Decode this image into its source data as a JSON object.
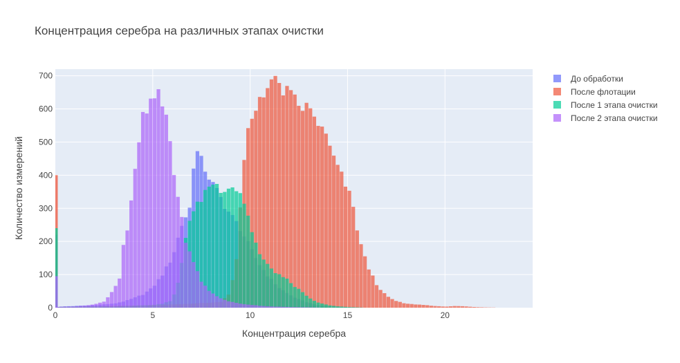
{
  "chart_data": {
    "type": "histogram",
    "title": "Концентрация серебра на различных этапах очистки",
    "xlabel": "Концентрация серебра",
    "ylabel": "Количество измерений",
    "xlim": [
      0,
      24.5
    ],
    "ylim": [
      0,
      720
    ],
    "x_ticks": [
      0,
      5,
      10,
      15,
      20
    ],
    "y_ticks": [
      0,
      100,
      200,
      300,
      400,
      500,
      600,
      700
    ],
    "grid": true,
    "barmode": "overlay",
    "legend_position": "right",
    "bin_width": 0.2,
    "series": [
      {
        "name": "До обработки",
        "color": "#636efa",
        "zero_spike": 220,
        "points": [
          [
            0,
            2
          ],
          [
            0.5,
            4
          ],
          [
            1,
            5
          ],
          [
            2,
            8
          ],
          [
            3,
            12
          ],
          [
            3.6,
            20
          ],
          [
            4,
            28
          ],
          [
            4.5,
            40
          ],
          [
            5,
            60
          ],
          [
            5.5,
            100
          ],
          [
            6,
            150
          ],
          [
            6.5,
            250
          ],
          [
            6.9,
            300
          ],
          [
            7,
            390
          ],
          [
            7.2,
            480
          ],
          [
            7.5,
            440
          ],
          [
            7.8,
            410
          ],
          [
            8,
            380
          ],
          [
            8.5,
            330
          ],
          [
            9,
            280
          ],
          [
            9.5,
            240
          ],
          [
            10,
            180
          ],
          [
            10.5,
            130
          ],
          [
            11,
            90
          ],
          [
            11.5,
            60
          ],
          [
            12,
            40
          ],
          [
            12.5,
            25
          ],
          [
            13,
            15
          ],
          [
            13.5,
            8
          ],
          [
            14,
            4
          ],
          [
            15,
            2
          ],
          [
            16,
            0
          ]
        ]
      },
      {
        "name": "После флотации",
        "color": "#ef553b",
        "zero_spike": 400,
        "points": [
          [
            0,
            2
          ],
          [
            1,
            3
          ],
          [
            2,
            4
          ],
          [
            3,
            5
          ],
          [
            4,
            6
          ],
          [
            5,
            8
          ],
          [
            6,
            10
          ],
          [
            7,
            12
          ],
          [
            7.5,
            14
          ],
          [
            8,
            15
          ],
          [
            8.5,
            18
          ],
          [
            9,
            45
          ],
          [
            9.3,
            150
          ],
          [
            9.5,
            290
          ],
          [
            9.7,
            440
          ],
          [
            9.9,
            530
          ],
          [
            10.2,
            580
          ],
          [
            10.5,
            640
          ],
          [
            10.8,
            665
          ],
          [
            11.1,
            680
          ],
          [
            11.5,
            670
          ],
          [
            12,
            640
          ],
          [
            12.5,
            610
          ],
          [
            13,
            600
          ],
          [
            13.5,
            560
          ],
          [
            14,
            500
          ],
          [
            14.5,
            420
          ],
          [
            15,
            360
          ],
          [
            15.3,
            300
          ],
          [
            15.6,
            210
          ],
          [
            16,
            130
          ],
          [
            16.5,
            70
          ],
          [
            17,
            35
          ],
          [
            17.5,
            20
          ],
          [
            18,
            12
          ],
          [
            18.5,
            10
          ],
          [
            19,
            8
          ],
          [
            19.5,
            5
          ],
          [
            20,
            3
          ],
          [
            20.5,
            5
          ],
          [
            21,
            4
          ],
          [
            21.5,
            2
          ],
          [
            22,
            1
          ],
          [
            23,
            0
          ]
        ]
      },
      {
        "name": "После 1 этапа очистки",
        "color": "#00cc96",
        "zero_spike": 240,
        "points": [
          [
            0,
            2
          ],
          [
            1,
            3
          ],
          [
            2,
            4
          ],
          [
            3,
            4
          ],
          [
            4,
            6
          ],
          [
            5,
            8
          ],
          [
            5.5,
            12
          ],
          [
            6,
            22
          ],
          [
            6.4,
            90
          ],
          [
            6.6,
            180
          ],
          [
            6.8,
            255
          ],
          [
            7,
            275
          ],
          [
            7.5,
            330
          ],
          [
            8,
            380
          ],
          [
            8.5,
            360
          ],
          [
            9,
            370
          ],
          [
            9.5,
            350
          ],
          [
            9.8,
            300
          ],
          [
            10,
            250
          ],
          [
            10.5,
            160
          ],
          [
            11,
            120
          ],
          [
            11.5,
            100
          ],
          [
            12,
            80
          ],
          [
            12.5,
            55
          ],
          [
            13,
            30
          ],
          [
            13.5,
            15
          ],
          [
            14,
            8
          ],
          [
            14.5,
            4
          ],
          [
            15,
            2
          ],
          [
            16,
            0
          ]
        ]
      },
      {
        "name": "После 2 этапа очистки",
        "color": "#ab63fa",
        "zero_spike": 95,
        "points": [
          [
            0,
            2
          ],
          [
            1,
            4
          ],
          [
            1.5,
            6
          ],
          [
            2,
            10
          ],
          [
            2.5,
            18
          ],
          [
            3,
            55
          ],
          [
            3.3,
            90
          ],
          [
            3.5,
            190
          ],
          [
            3.8,
            260
          ],
          [
            4,
            365
          ],
          [
            4.2,
            450
          ],
          [
            4.4,
            555
          ],
          [
            4.6,
            580
          ],
          [
            4.8,
            600
          ],
          [
            5,
            630
          ],
          [
            5.2,
            640
          ],
          [
            5.4,
            625
          ],
          [
            5.6,
            600
          ],
          [
            5.8,
            560
          ],
          [
            6,
            440
          ],
          [
            6.2,
            380
          ],
          [
            6.4,
            295
          ],
          [
            6.6,
            230
          ],
          [
            6.8,
            180
          ],
          [
            7,
            150
          ],
          [
            7.5,
            80
          ],
          [
            8,
            45
          ],
          [
            8.5,
            28
          ],
          [
            9,
            18
          ],
          [
            9.5,
            12
          ],
          [
            10,
            9
          ],
          [
            10.5,
            6
          ],
          [
            11,
            4
          ],
          [
            11.5,
            3
          ],
          [
            12,
            2
          ],
          [
            13,
            1
          ],
          [
            14,
            0
          ]
        ]
      }
    ]
  }
}
